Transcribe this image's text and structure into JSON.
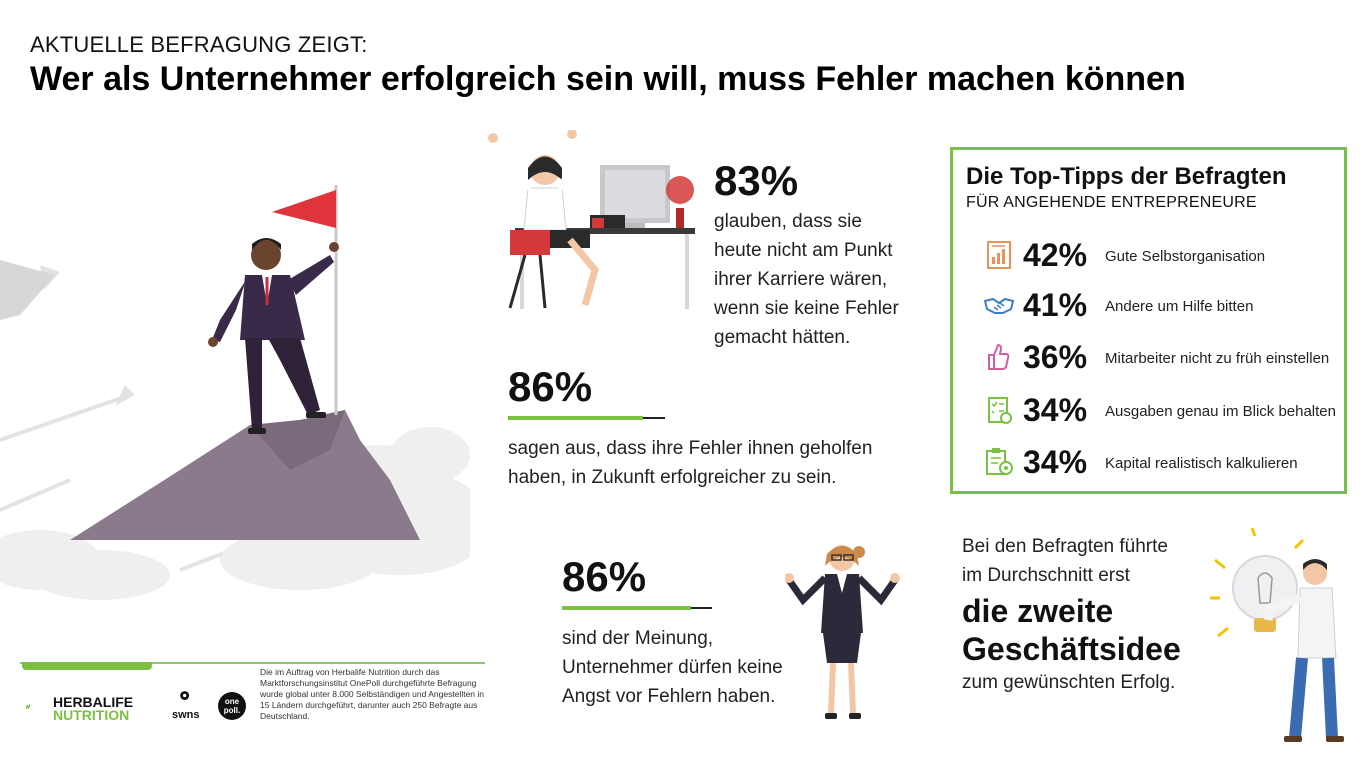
{
  "header": {
    "kicker": "AKTUELLE BEFRAGUNG ZEIGT:",
    "headline": "Wer als Unternehmer erfolgreich sein will, muss Fehler machen können"
  },
  "stats": [
    {
      "percent": "83%",
      "lines": [
        "glauben, dass sie",
        "heute nicht am Punkt",
        "ihrer Karriere wären,",
        "wenn sie keine Fehler",
        "gemacht hätten."
      ],
      "value": 83
    },
    {
      "percent": "86%",
      "lines": [
        "sagen aus, dass ihre Fehler ihnen geholfen",
        "haben, in Zukunft erfolgreicher zu sein."
      ],
      "value": 86
    },
    {
      "percent": "86%",
      "lines": [
        "sind der Meinung,",
        "Unternehmer dürfen keine",
        "Angst vor Fehlern haben."
      ],
      "value": 86
    }
  ],
  "tips": {
    "title": "Die Top-Tipps der Befragten",
    "subtitle": "FÜR ANGEHENDE ENTREPRENEURE",
    "items": [
      {
        "percent": "42%",
        "label": "Gute Selbstorganisation",
        "icon": "chart-report-icon"
      },
      {
        "percent": "41%",
        "label": "Andere um Hilfe bitten",
        "icon": "handshake-icon"
      },
      {
        "percent": "36%",
        "label": "Mitarbeiter nicht zu früh einstellen",
        "icon": "thumbs-up-icon"
      },
      {
        "percent": "34%",
        "label": "Ausgaben genau im Blick behalten",
        "icon": "checklist-icon"
      },
      {
        "percent": "34%",
        "label": "Kapital realistisch kalkulieren",
        "icon": "clipboard-target-icon"
      }
    ]
  },
  "idea": {
    "intro_1": "Bei den Befragten führte",
    "intro_2": "im Durchschnitt erst",
    "highlight_1": "die zweite",
    "highlight_2": "Geschäftsidee",
    "outro": "zum gewünschten Erfolg."
  },
  "footer": {
    "brand_line1": "HERBALIFE",
    "brand_line2": "NUTRITION",
    "swns": "swns",
    "onepoll_1": "one",
    "onepoll_2": "poll.",
    "disclaimer": "Die im Auftrag von Herbalife Nutrition durch das Marktforschungsinstitut OnePoll durchgeführte Befragung wurde global unter 8.000 Selbständigen und Angestellten in 15 Ländern durchgeführt, darunter auch 250 Befragte aus Deutschland."
  },
  "colors": {
    "accent_green": "#7ac142",
    "flag_red": "#e0343c",
    "mountain": "#8a7a8c",
    "suit": "#3a2a4a"
  }
}
